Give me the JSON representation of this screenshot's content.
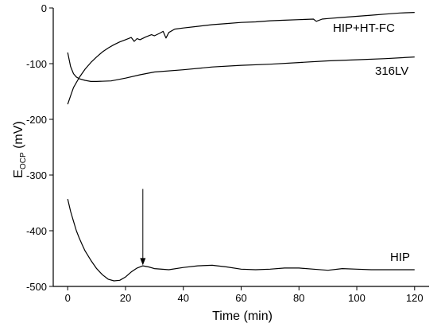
{
  "chart_data": {
    "type": "line",
    "title": "",
    "xlabel": "Time (min)",
    "ylabel_main": "E",
    "ylabel_sub": "OCP",
    "ylabel_unit": " (mV)",
    "xlim": [
      -5,
      125
    ],
    "ylim": [
      -500,
      0
    ],
    "xticks": [
      0,
      20,
      40,
      60,
      80,
      100,
      120
    ],
    "xtick_labels": [
      "0",
      "20",
      "40",
      "60",
      "80",
      "100",
      "120"
    ],
    "yticks": [
      0,
      -100,
      -200,
      -300,
      -400,
      -500
    ],
    "ytick_labels": [
      "0",
      "-100",
      "-200",
      "-300",
      "-400",
      "-500"
    ],
    "grid": false,
    "series": [
      {
        "name": "HIP+HT-FC",
        "x": [
          0,
          1,
          2,
          4,
          6,
          8,
          10,
          12,
          14,
          16,
          18,
          20,
          22,
          23,
          24,
          25,
          27,
          29,
          30,
          32,
          33,
          34,
          35,
          37,
          40,
          45,
          50,
          55,
          60,
          65,
          70,
          75,
          80,
          85,
          86,
          88,
          90,
          95,
          100,
          105,
          110,
          115,
          120
        ],
        "y": [
          -173,
          -158,
          -143,
          -125,
          -110,
          -98,
          -88,
          -79,
          -72,
          -66,
          -61,
          -57,
          -53,
          -60,
          -55,
          -57,
          -52,
          -48,
          -50,
          -45,
          -42,
          -54,
          -44,
          -38,
          -36,
          -33,
          -30,
          -28,
          -26,
          -25,
          -23,
          -22,
          -21,
          -20,
          -24,
          -20,
          -19,
          -17,
          -15,
          -13,
          -11,
          -9,
          -8
        ]
      },
      {
        "name": "316LV",
        "x": [
          0,
          1,
          2,
          3,
          4,
          6,
          8,
          10,
          15,
          20,
          25,
          30,
          40,
          50,
          60,
          70,
          80,
          90,
          100,
          110,
          120
        ],
        "y": [
          -80,
          -105,
          -118,
          -124,
          -127,
          -130,
          -132,
          -132,
          -131,
          -126,
          -120,
          -115,
          -111,
          -106,
          -103,
          -101,
          -98,
          -95,
          -93,
          -91,
          -88
        ]
      },
      {
        "name": "HIP",
        "x": [
          0,
          1,
          2,
          3,
          4,
          5,
          6,
          8,
          10,
          12,
          14,
          16,
          18,
          20,
          22,
          24,
          26,
          28,
          30,
          35,
          40,
          45,
          50,
          55,
          60,
          65,
          70,
          75,
          80,
          85,
          90,
          95,
          100,
          105,
          110,
          115,
          120
        ],
        "y": [
          -343,
          -365,
          -383,
          -400,
          -413,
          -425,
          -436,
          -453,
          -468,
          -479,
          -487,
          -490,
          -489,
          -483,
          -474,
          -467,
          -463,
          -465,
          -468,
          -470,
          -466,
          -463,
          -462,
          -465,
          -469,
          -470,
          -469,
          -467,
          -467,
          -469,
          -471,
          -468,
          -469,
          -470,
          -470,
          -470,
          -470
        ]
      }
    ],
    "series_label_text": [
      "HIP+HT-FC",
      "316LV",
      "HIP"
    ],
    "annotations": [
      {
        "type": "arrow",
        "x": 26,
        "y_start": -325,
        "y_end": -462
      }
    ]
  }
}
